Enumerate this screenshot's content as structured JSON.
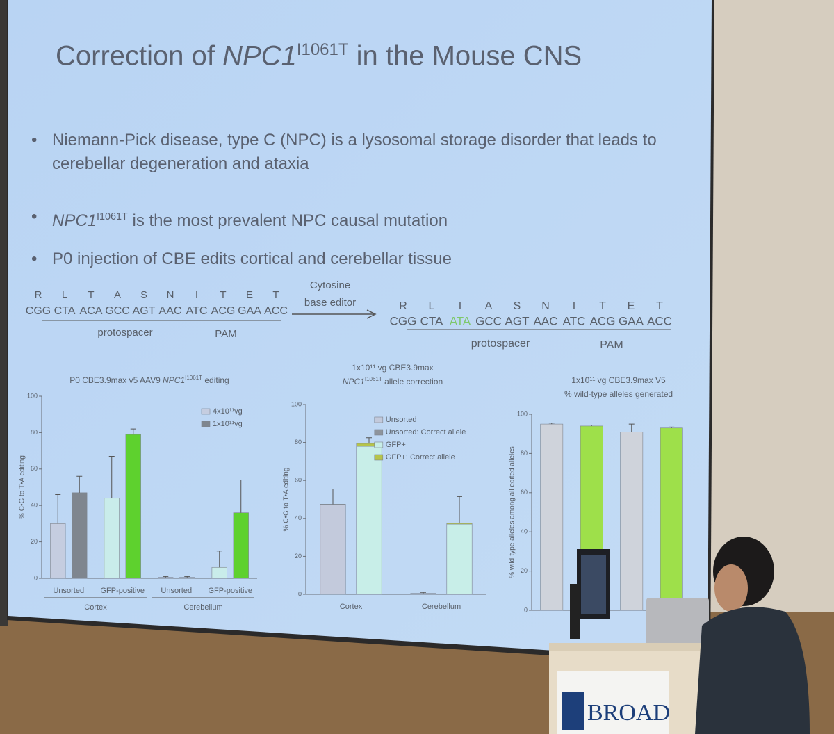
{
  "slide": {
    "title": [
      "Correction of ",
      "NPC1",
      "I1061T",
      " in the Mouse CNS"
    ],
    "bullets": [
      [
        "Niemann-Pick disease, type C (NPC) is a lysosomal storage disorder that leads to cerebellar degeneration and ataxia"
      ],
      [
        "NPC1",
        "I1061T",
        " is the most prevalent NPC causal mutation"
      ],
      [
        "P0 injection of CBE edits cortical and cerebellar tissue"
      ]
    ],
    "sequence": {
      "original_aa": [
        "R",
        "L",
        "T",
        "A",
        "S",
        "N",
        "I",
        "T",
        "E",
        "T"
      ],
      "original_codons": [
        "CGG",
        "CTA",
        "ACA",
        "GCC",
        "AGT",
        "AAC",
        "ATC",
        "ACG",
        "GAA",
        "ACC"
      ],
      "editor": [
        "Cytosine",
        "base editor"
      ],
      "edited_aa": [
        "R",
        "L",
        "I",
        "A",
        "S",
        "N",
        "I",
        "T",
        "E",
        "T"
      ],
      "edited_codons": [
        "CGG",
        "CTA",
        "ATA",
        "GCC",
        "AGT",
        "AAC",
        "ATC",
        "ACG",
        "GAA",
        "ACC"
      ],
      "edited_index": 2,
      "protospacer": "protospacer",
      "pam": "PAM"
    }
  },
  "chart_data": [
    {
      "type": "bar",
      "title_lines": [
        [
          "P0 CBE3.9max v5 AAV9 ",
          "NPC1",
          "I1061T",
          " editing"
        ]
      ],
      "ylabel": "% C•G to T•A editing",
      "ylim": [
        0,
        100
      ],
      "yticks": [
        0,
        20,
        40,
        60,
        80,
        100
      ],
      "categories": [
        "Unsorted",
        "GFP-positive",
        "Unsorted",
        "GFP-positive"
      ],
      "groups": [
        "Cortex",
        "Cerebellum"
      ],
      "legend": "upper right",
      "series": [
        {
          "name": "4x10¹¹vg",
          "colors": [
            "#c5cde0",
            "#c9ecea",
            "#c5cde0",
            "#c9ecea"
          ],
          "values": [
            30,
            44,
            0.5,
            6
          ],
          "errors": [
            16,
            23,
            0.5,
            9
          ]
        },
        {
          "name": "1x10¹¹vg",
          "colors": [
            "#7f868f",
            "#5ed12e",
            "#7f868f",
            "#5ed12e"
          ],
          "values": [
            47,
            79,
            0.5,
            36
          ],
          "errors": [
            9,
            3,
            0.5,
            18
          ]
        }
      ]
    },
    {
      "type": "bar",
      "title_lines": [
        [
          "1x10¹¹ vg CBE3.9max"
        ],
        [
          "NPC1",
          "I1061T",
          " allele correction"
        ]
      ],
      "ylabel": "% C•G to T•A editing",
      "ylim": [
        0,
        100
      ],
      "yticks": [
        0,
        20,
        40,
        60,
        80,
        100
      ],
      "categories": [
        "Cortex",
        "Cerebellum"
      ],
      "legend": "upper left",
      "stack": [
        [
          0,
          1
        ],
        [
          2,
          3
        ]
      ],
      "series": [
        {
          "name": "Unsorted",
          "color": "#c3cadc",
          "values": [
            47,
            0.5
          ]
        },
        {
          "name": "Unsorted: Correct allele",
          "color": "#8e949c",
          "values": [
            0.5,
            0
          ],
          "errors": [
            8,
            0.5
          ]
        },
        {
          "name": "GFP+",
          "color": "#c8eee8",
          "values": [
            78,
            37
          ]
        },
        {
          "name": "GFP+: Correct allele",
          "color": "#b6c44a",
          "values": [
            1.5,
            0.5
          ],
          "errors": [
            3,
            14
          ]
        }
      ]
    },
    {
      "type": "bar",
      "title_lines": [
        [
          "1x10¹¹ vg CBE3.9max V5"
        ],
        [
          "% wild-type alleles generated"
        ]
      ],
      "ylabel": "% wild-type alleles among all edited alleles",
      "ylim": [
        0,
        100
      ],
      "yticks": [
        0,
        20,
        40,
        60,
        80,
        100
      ],
      "series": [
        {
          "colors": [
            "#cfd3db",
            "#9ee04a",
            "#cfd3db",
            "#9ee04a"
          ],
          "values": [
            95,
            94,
            91,
            93
          ],
          "errors": [
            0.5,
            0.5,
            4,
            0.5
          ]
        }
      ]
    }
  ]
}
